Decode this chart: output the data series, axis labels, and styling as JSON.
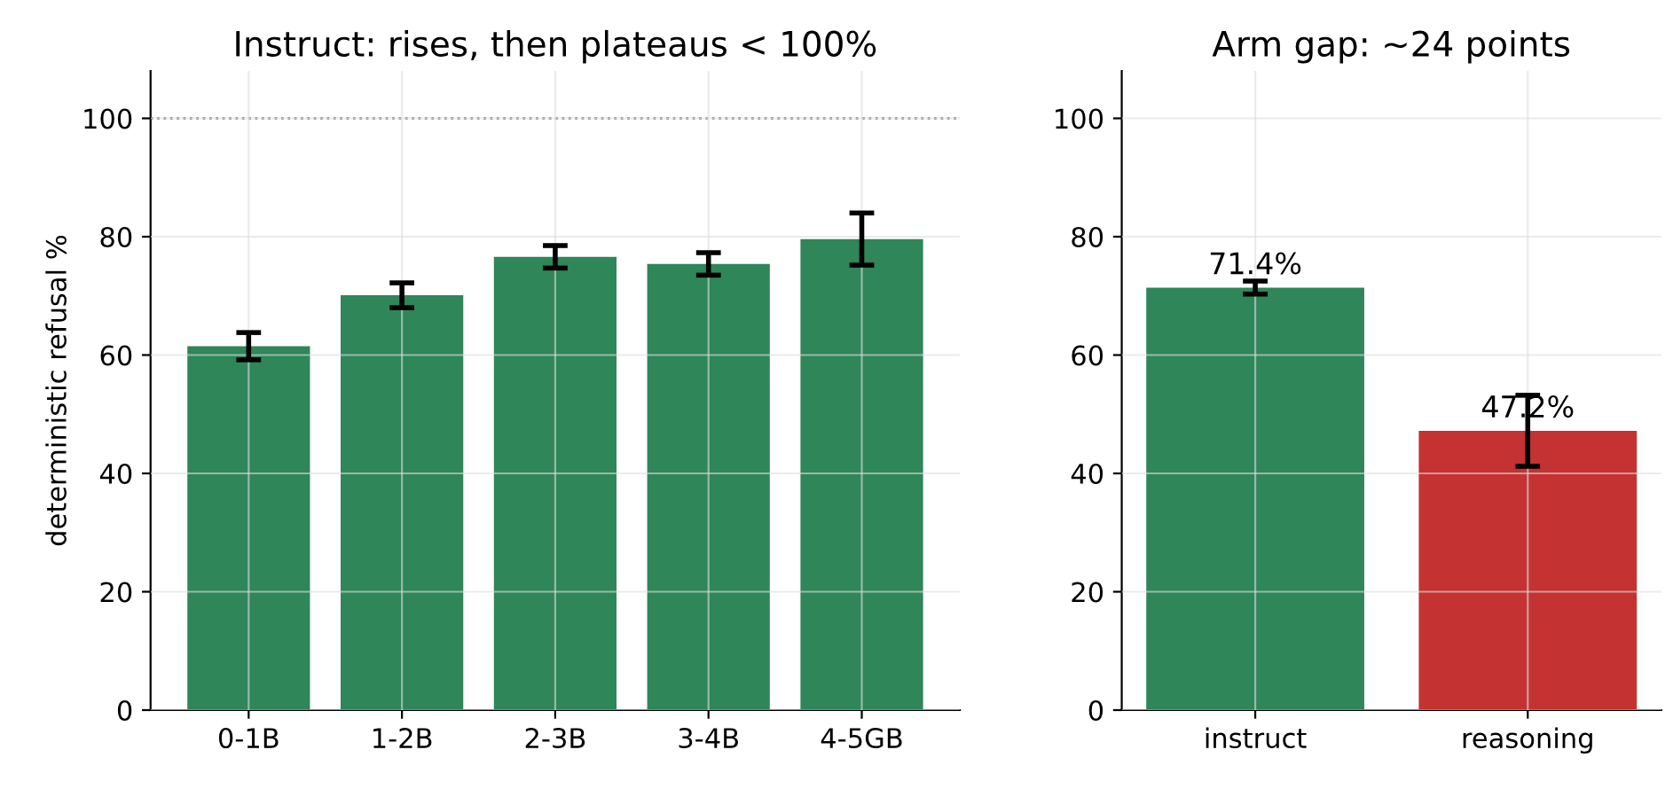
{
  "chart_data": [
    {
      "type": "bar",
      "title": "Instruct: rises, then plateaus < 100%",
      "ylabel": "deterministic refusal %",
      "categories": [
        "0-1B",
        "1-2B",
        "2-3B",
        "3-4B",
        "4-5GB"
      ],
      "values": [
        61.5,
        70.1,
        76.6,
        75.4,
        79.6
      ],
      "errors": [
        2.3,
        2.1,
        1.9,
        1.9,
        4.4
      ],
      "color": "#2e8659",
      "ylim": [
        0,
        108
      ],
      "yticks": [
        0,
        20,
        40,
        60,
        80,
        100
      ],
      "grid": true,
      "ref_lines": [
        {
          "axis": "y",
          "value": 100,
          "color": "#888888",
          "line_style": "dotted"
        }
      ]
    },
    {
      "type": "bar",
      "title": "Arm gap: ~24 points",
      "categories": [
        "instruct",
        "reasoning"
      ],
      "values": [
        71.4,
        47.2
      ],
      "errors": [
        1.1,
        6.0
      ],
      "colors": [
        "#2e8659",
        "#c43232"
      ],
      "value_labels": [
        "71.4%",
        "47.2%"
      ],
      "ylim": [
        0,
        108
      ],
      "yticks": [
        0,
        20,
        40,
        60,
        80,
        100
      ],
      "grid": true
    }
  ]
}
